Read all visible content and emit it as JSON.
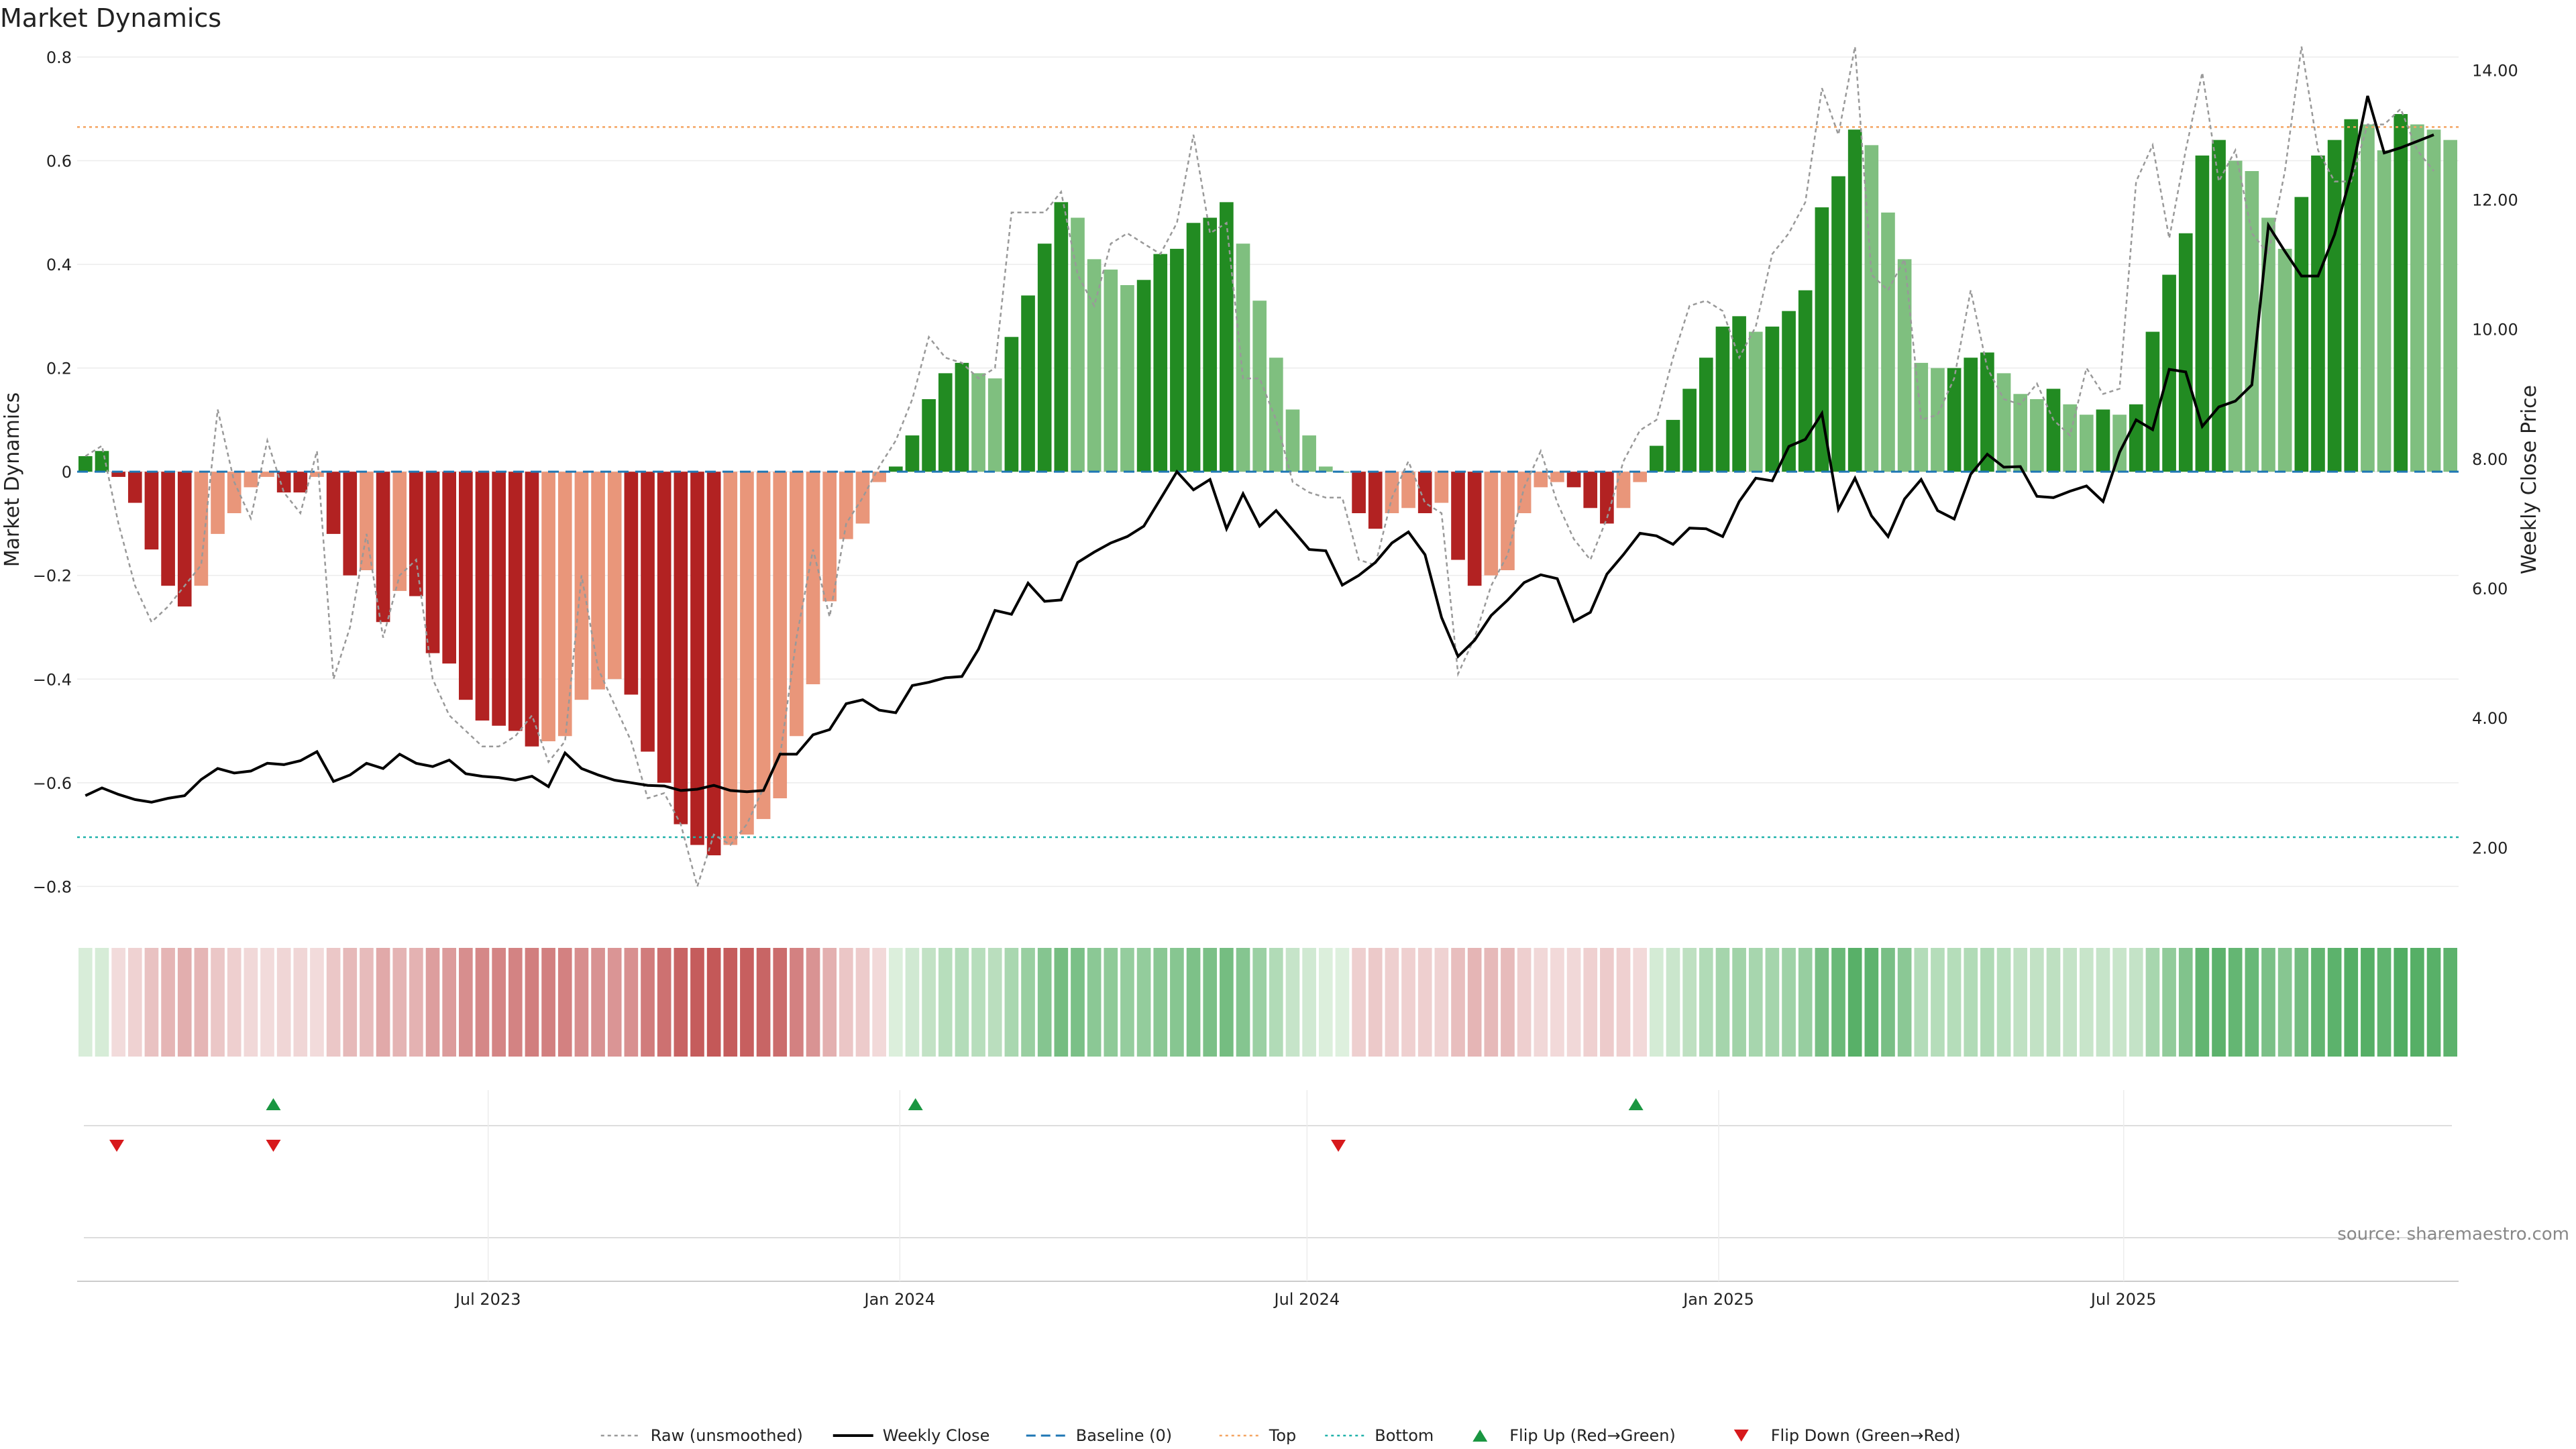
{
  "chart_data": {
    "type": "bar",
    "title": "Market Dynamics",
    "ylabel": "Market Dynamics",
    "y2label": "Weekly Close Price",
    "ylim": [
      -0.85,
      0.8
    ],
    "y2lim": [
      1.0,
      14.2
    ],
    "yticks": [
      0.8,
      0.6,
      0.4,
      0.2,
      0,
      -0.2,
      -0.4,
      -0.6,
      -0.8
    ],
    "yticklabels": [
      "0.8",
      "0.6",
      "0.4",
      "0.2",
      "0",
      "−0.2",
      "−0.4",
      "−0.6",
      "−0.8"
    ],
    "y2ticks": [
      14,
      12,
      10,
      8,
      6,
      4,
      2
    ],
    "y2ticklabels": [
      "14.00",
      "12.00",
      "10.00",
      "8.00",
      "6.00",
      "4.00",
      "2.00"
    ],
    "x_start": "2023-01-02",
    "x_end": "2025-11-24",
    "xticks": [
      {
        "date": "2023-07-01",
        "label": "Jul 2023"
      },
      {
        "date": "2024-01-01",
        "label": "Jan 2024"
      },
      {
        "date": "2024-07-01",
        "label": "Jul 2024"
      },
      {
        "date": "2025-01-01",
        "label": "Jan 2025"
      },
      {
        "date": "2025-07-01",
        "label": "Jul 2025"
      }
    ],
    "top_level": 0.665,
    "bottom_level": -0.705,
    "baseline": 0,
    "bar_values": [
      0.03,
      0.04,
      -0.01,
      -0.06,
      -0.15,
      -0.22,
      -0.26,
      -0.22,
      -0.12,
      -0.08,
      -0.03,
      -0.01,
      -0.04,
      -0.04,
      -0.01,
      -0.12,
      -0.2,
      -0.19,
      -0.29,
      -0.23,
      -0.24,
      -0.35,
      -0.37,
      -0.44,
      -0.48,
      -0.49,
      -0.5,
      -0.53,
      -0.52,
      -0.51,
      -0.44,
      -0.42,
      -0.4,
      -0.43,
      -0.54,
      -0.6,
      -0.68,
      -0.72,
      -0.74,
      -0.72,
      -0.7,
      -0.67,
      -0.63,
      -0.51,
      -0.41,
      -0.25,
      -0.13,
      -0.1,
      -0.02,
      0.01,
      0.07,
      0.14,
      0.19,
      0.21,
      0.19,
      0.18,
      0.26,
      0.34,
      0.44,
      0.52,
      0.49,
      0.41,
      0.39,
      0.36,
      0.37,
      0.42,
      0.43,
      0.48,
      0.49,
      0.52,
      0.44,
      0.33,
      0.22,
      0.12,
      0.07,
      0.01,
      0.0,
      -0.08,
      -0.11,
      -0.08,
      -0.07,
      -0.08,
      -0.06,
      -0.17,
      -0.22,
      -0.2,
      -0.19,
      -0.08,
      -0.03,
      -0.02,
      -0.03,
      -0.07,
      -0.1,
      -0.07,
      -0.02,
      0.05,
      0.1,
      0.16,
      0.22,
      0.28,
      0.3,
      0.27,
      0.28,
      0.31,
      0.35,
      0.51,
      0.57,
      0.66,
      0.63,
      0.5,
      0.41,
      0.21,
      0.2,
      0.2,
      0.22,
      0.23,
      0.19,
      0.15,
      0.14,
      0.16,
      0.13,
      0.11,
      0.12,
      0.11,
      0.13,
      0.27,
      0.38,
      0.46,
      0.61,
      0.64,
      0.6,
      0.58,
      0.49,
      0.43,
      0.53,
      0.61,
      0.64,
      0.68,
      0.67,
      0.62,
      0.69,
      0.67,
      0.66,
      0.64
    ],
    "raw_values": [
      0.03,
      0.05,
      -0.1,
      -0.22,
      -0.29,
      -0.26,
      -0.22,
      -0.18,
      0.12,
      -0.02,
      -0.09,
      0.06,
      -0.04,
      -0.08,
      0.04,
      -0.4,
      -0.3,
      -0.12,
      -0.32,
      -0.2,
      -0.17,
      -0.4,
      -0.47,
      -0.5,
      -0.53,
      -0.53,
      -0.51,
      -0.47,
      -0.56,
      -0.52,
      -0.2,
      -0.38,
      -0.45,
      -0.52,
      -0.63,
      -0.62,
      -0.68,
      -0.8,
      -0.7,
      -0.72,
      -0.68,
      -0.61,
      -0.55,
      -0.32,
      -0.15,
      -0.28,
      -0.1,
      -0.05,
      0.01,
      0.06,
      0.14,
      0.26,
      0.22,
      0.21,
      0.18,
      0.2,
      0.5,
      0.5,
      0.5,
      0.54,
      0.38,
      0.32,
      0.44,
      0.46,
      0.44,
      0.42,
      0.48,
      0.65,
      0.46,
      0.48,
      0.18,
      0.18,
      0.1,
      -0.02,
      -0.04,
      -0.05,
      -0.05,
      -0.17,
      -0.18,
      -0.05,
      0.02,
      -0.06,
      -0.08,
      -0.39,
      -0.32,
      -0.22,
      -0.16,
      -0.03,
      0.04,
      -0.06,
      -0.13,
      -0.17,
      -0.09,
      0.02,
      0.08,
      0.1,
      0.22,
      0.32,
      0.33,
      0.31,
      0.22,
      0.28,
      0.42,
      0.46,
      0.52,
      0.74,
      0.65,
      0.82,
      0.38,
      0.35,
      0.41,
      0.1,
      0.11,
      0.18,
      0.35,
      0.2,
      0.14,
      0.13,
      0.17,
      0.1,
      0.07,
      0.2,
      0.15,
      0.16,
      0.56,
      0.63,
      0.45,
      0.62,
      0.77,
      0.56,
      0.62,
      0.46,
      0.42,
      0.58,
      0.82,
      0.62,
      0.56,
      0.56,
      0.67,
      0.67,
      0.7,
      0.62,
      0.58
    ],
    "close_values": [
      2.8,
      2.92,
      2.82,
      2.74,
      2.7,
      2.76,
      2.8,
      3.05,
      3.22,
      3.15,
      3.18,
      3.3,
      3.28,
      3.34,
      3.48,
      3.02,
      3.12,
      3.3,
      3.22,
      3.44,
      3.3,
      3.25,
      3.35,
      3.14,
      3.1,
      3.08,
      3.04,
      3.1,
      2.94,
      3.46,
      3.22,
      3.12,
      3.04,
      3.0,
      2.96,
      2.95,
      2.88,
      2.9,
      2.96,
      2.88,
      2.86,
      2.88,
      3.44,
      3.44,
      3.74,
      3.82,
      4.22,
      4.28,
      4.12,
      4.08,
      4.5,
      4.55,
      4.62,
      4.64,
      5.06,
      5.66,
      5.6,
      6.08,
      5.8,
      5.82,
      6.4,
      6.56,
      6.7,
      6.8,
      6.96,
      7.38,
      7.8,
      7.52,
      7.68,
      6.92,
      7.46,
      6.96,
      7.2,
      6.9,
      6.6,
      6.58,
      6.05,
      6.2,
      6.4,
      6.7,
      6.87,
      6.52,
      5.55,
      4.95,
      5.2,
      5.58,
      5.82,
      6.09,
      6.21,
      6.15,
      5.49,
      5.63,
      6.22,
      6.52,
      6.85,
      6.81,
      6.68,
      6.93,
      6.92,
      6.8,
      7.34,
      7.7,
      7.66,
      8.19,
      8.3,
      8.7,
      7.22,
      7.7,
      7.12,
      6.8,
      7.38,
      7.68,
      7.2,
      7.07,
      7.76,
      8.07,
      7.87,
      7.88,
      7.42,
      7.4,
      7.5,
      7.58,
      7.34,
      8.1,
      8.6,
      8.45,
      9.38,
      9.34,
      8.5,
      8.8,
      8.89,
      9.14,
      11.6,
      11.2,
      10.82,
      10.82,
      11.46,
      12.38,
      13.6,
      12.72,
      12.8,
      12.9,
      13.0
    ],
    "flip_up_dates": [
      "2023-03-27",
      "2024-01-08",
      "2024-11-25"
    ],
    "flip_down_dates": [
      "2023-01-16",
      "2023-03-27",
      "2024-07-15"
    ],
    "colors": {
      "green_strong": "#228b22",
      "green_light": "#7fbf7f",
      "red_strong": "#b22222",
      "red_light": "#e9967a",
      "close_line": "#000000",
      "raw_line": "#999999",
      "baseline": "#1f77b4",
      "top": "#f4a460",
      "bottom": "#20b2aa",
      "flip_up": "#1a9641",
      "flip_down": "#d7191c"
    },
    "legend": [
      "Raw (unsmoothed)",
      "Weekly Close",
      "Baseline (0)",
      "Top",
      "Bottom",
      "Flip Up (Red→Green)",
      "Flip Down (Green→Red)"
    ],
    "legend_position": "bottom-center",
    "source": "source: sharemaestro.com"
  }
}
